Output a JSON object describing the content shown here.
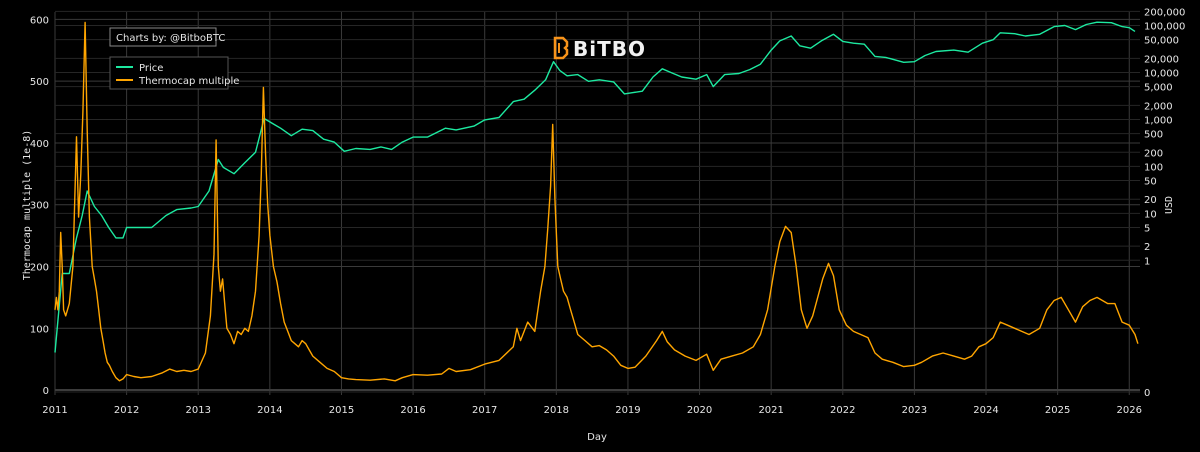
{
  "chart_data": {
    "type": "line",
    "credit": "Charts by: @BitboBTC",
    "brand": "BiTBO",
    "xlabel": "Day",
    "ylabel_left": "Thermocap multiple (1e-8)",
    "ylabel_right": "USD",
    "x_ticks": [
      "2011",
      "2012",
      "2013",
      "2014",
      "2015",
      "2016",
      "2017",
      "2018",
      "2019",
      "2020",
      "2021",
      "2022",
      "2023",
      "2024",
      "2025",
      "2026"
    ],
    "xlim": [
      2011.0,
      2026.15
    ],
    "ylim_left": [
      -8,
      612
    ],
    "y_ticks_left": [
      "0",
      "100",
      "200",
      "300",
      "400",
      "500",
      "600"
    ],
    "y_ticks_right": [
      "0",
      "1",
      "2",
      "5",
      "10",
      "20",
      "50",
      "100",
      "200",
      "500",
      "1,000",
      "2,000",
      "5,000",
      "10,000",
      "20,000",
      "50,000",
      "100,000",
      "200,000"
    ],
    "colors": {
      "price": "#1de9a0",
      "thermocap": "#ffa500",
      "grid": "#3a3a3a",
      "zero": "#777777"
    },
    "series": [
      {
        "name": "Price",
        "axis": "right",
        "unit": "USD",
        "points": [
          [
            2011.0,
            0.3
          ],
          [
            2011.1,
            0.9
          ],
          [
            2011.2,
            0.9
          ],
          [
            2011.3,
            3
          ],
          [
            2011.38,
            9
          ],
          [
            2011.45,
            30
          ],
          [
            2011.55,
            14
          ],
          [
            2011.65,
            9
          ],
          [
            2011.75,
            5
          ],
          [
            2011.85,
            3
          ],
          [
            2011.95,
            3
          ],
          [
            2012.0,
            5
          ],
          [
            2012.15,
            5
          ],
          [
            2012.35,
            5
          ],
          [
            2012.55,
            9
          ],
          [
            2012.7,
            12
          ],
          [
            2012.9,
            13
          ],
          [
            2013.0,
            14
          ],
          [
            2013.15,
            30
          ],
          [
            2013.28,
            140
          ],
          [
            2013.35,
            95
          ],
          [
            2013.5,
            70
          ],
          [
            2013.65,
            120
          ],
          [
            2013.8,
            200
          ],
          [
            2013.92,
            1050
          ],
          [
            2014.05,
            800
          ],
          [
            2014.15,
            650
          ],
          [
            2014.3,
            450
          ],
          [
            2014.45,
            620
          ],
          [
            2014.6,
            580
          ],
          [
            2014.75,
            380
          ],
          [
            2014.9,
            330
          ],
          [
            2015.04,
            210
          ],
          [
            2015.2,
            240
          ],
          [
            2015.4,
            230
          ],
          [
            2015.55,
            260
          ],
          [
            2015.7,
            230
          ],
          [
            2015.85,
            330
          ],
          [
            2016.0,
            420
          ],
          [
            2016.2,
            420
          ],
          [
            2016.45,
            650
          ],
          [
            2016.6,
            600
          ],
          [
            2016.85,
            720
          ],
          [
            2017.0,
            980
          ],
          [
            2017.2,
            1100
          ],
          [
            2017.4,
            2400
          ],
          [
            2017.55,
            2700
          ],
          [
            2017.7,
            4200
          ],
          [
            2017.85,
            7000
          ],
          [
            2017.96,
            17000
          ],
          [
            2018.05,
            11000
          ],
          [
            2018.15,
            8500
          ],
          [
            2018.3,
            9000
          ],
          [
            2018.45,
            6500
          ],
          [
            2018.6,
            7000
          ],
          [
            2018.8,
            6300
          ],
          [
            2018.95,
            3500
          ],
          [
            2019.05,
            3700
          ],
          [
            2019.2,
            4000
          ],
          [
            2019.35,
            8000
          ],
          [
            2019.48,
            12000
          ],
          [
            2019.6,
            10000
          ],
          [
            2019.75,
            8000
          ],
          [
            2019.95,
            7200
          ],
          [
            2020.1,
            9000
          ],
          [
            2020.19,
            5000
          ],
          [
            2020.35,
            9000
          ],
          [
            2020.55,
            9500
          ],
          [
            2020.7,
            11500
          ],
          [
            2020.85,
            15000
          ],
          [
            2021.0,
            30000
          ],
          [
            2021.12,
            47000
          ],
          [
            2021.28,
            60000
          ],
          [
            2021.4,
            37000
          ],
          [
            2021.55,
            33000
          ],
          [
            2021.7,
            47000
          ],
          [
            2021.87,
            65000
          ],
          [
            2022.0,
            46000
          ],
          [
            2022.15,
            42000
          ],
          [
            2022.3,
            40000
          ],
          [
            2022.45,
            22000
          ],
          [
            2022.6,
            21000
          ],
          [
            2022.85,
            16500
          ],
          [
            2023.0,
            17000
          ],
          [
            2023.15,
            23000
          ],
          [
            2023.3,
            28000
          ],
          [
            2023.55,
            30000
          ],
          [
            2023.75,
            27000
          ],
          [
            2023.95,
            42000
          ],
          [
            2024.1,
            50000
          ],
          [
            2024.2,
            70000
          ],
          [
            2024.4,
            67000
          ],
          [
            2024.55,
            60000
          ],
          [
            2024.75,
            65000
          ],
          [
            2024.95,
            95000
          ],
          [
            2025.1,
            100000
          ],
          [
            2025.25,
            82000
          ],
          [
            2025.4,
            105000
          ],
          [
            2025.55,
            118000
          ],
          [
            2025.75,
            115000
          ],
          [
            2025.9,
            95000
          ],
          [
            2026.0,
            90000
          ],
          [
            2026.08,
            75000
          ]
        ]
      },
      {
        "name": "Thermocap multiple",
        "axis": "left",
        "unit": "1e-8",
        "points": [
          [
            2011.0,
            130
          ],
          [
            2011.02,
            150
          ],
          [
            2011.04,
            130
          ],
          [
            2011.06,
            160
          ],
          [
            2011.08,
            255
          ],
          [
            2011.1,
            200
          ],
          [
            2011.12,
            130
          ],
          [
            2011.15,
            120
          ],
          [
            2011.2,
            140
          ],
          [
            2011.25,
            200
          ],
          [
            2011.3,
            410
          ],
          [
            2011.33,
            280
          ],
          [
            2011.36,
            350
          ],
          [
            2011.39,
            450
          ],
          [
            2011.42,
            595
          ],
          [
            2011.45,
            420
          ],
          [
            2011.48,
            280
          ],
          [
            2011.52,
            200
          ],
          [
            2011.55,
            180
          ],
          [
            2011.58,
            160
          ],
          [
            2011.61,
            130
          ],
          [
            2011.64,
            100
          ],
          [
            2011.67,
            80
          ],
          [
            2011.7,
            60
          ],
          [
            2011.73,
            45
          ],
          [
            2011.76,
            40
          ],
          [
            2011.8,
            30
          ],
          [
            2011.85,
            20
          ],
          [
            2011.9,
            15
          ],
          [
            2011.95,
            18
          ],
          [
            2012.0,
            25
          ],
          [
            2012.1,
            22
          ],
          [
            2012.2,
            20
          ],
          [
            2012.35,
            22
          ],
          [
            2012.5,
            28
          ],
          [
            2012.6,
            34
          ],
          [
            2012.7,
            30
          ],
          [
            2012.8,
            32
          ],
          [
            2012.9,
            30
          ],
          [
            2013.0,
            34
          ],
          [
            2013.1,
            60
          ],
          [
            2013.17,
            120
          ],
          [
            2013.22,
            220
          ],
          [
            2013.25,
            405
          ],
          [
            2013.28,
            200
          ],
          [
            2013.31,
            160
          ],
          [
            2013.34,
            180
          ],
          [
            2013.37,
            140
          ],
          [
            2013.4,
            100
          ],
          [
            2013.45,
            90
          ],
          [
            2013.5,
            75
          ],
          [
            2013.55,
            95
          ],
          [
            2013.6,
            90
          ],
          [
            2013.65,
            100
          ],
          [
            2013.7,
            95
          ],
          [
            2013.75,
            120
          ],
          [
            2013.8,
            160
          ],
          [
            2013.85,
            250
          ],
          [
            2013.88,
            350
          ],
          [
            2013.91,
            490
          ],
          [
            2013.94,
            380
          ],
          [
            2013.97,
            300
          ],
          [
            2014.0,
            250
          ],
          [
            2014.05,
            200
          ],
          [
            2014.1,
            175
          ],
          [
            2014.15,
            140
          ],
          [
            2014.2,
            110
          ],
          [
            2014.25,
            95
          ],
          [
            2014.3,
            80
          ],
          [
            2014.35,
            75
          ],
          [
            2014.4,
            70
          ],
          [
            2014.45,
            80
          ],
          [
            2014.5,
            75
          ],
          [
            2014.55,
            65
          ],
          [
            2014.6,
            55
          ],
          [
            2014.7,
            45
          ],
          [
            2014.8,
            35
          ],
          [
            2014.9,
            30
          ],
          [
            2015.0,
            20
          ],
          [
            2015.1,
            18
          ],
          [
            2015.2,
            17
          ],
          [
            2015.4,
            16
          ],
          [
            2015.6,
            18
          ],
          [
            2015.75,
            15
          ],
          [
            2015.85,
            20
          ],
          [
            2016.0,
            25
          ],
          [
            2016.2,
            24
          ],
          [
            2016.4,
            26
          ],
          [
            2016.5,
            35
          ],
          [
            2016.6,
            30
          ],
          [
            2016.8,
            33
          ],
          [
            2017.0,
            42
          ],
          [
            2017.2,
            48
          ],
          [
            2017.4,
            70
          ],
          [
            2017.45,
            100
          ],
          [
            2017.5,
            80
          ],
          [
            2017.6,
            110
          ],
          [
            2017.7,
            95
          ],
          [
            2017.78,
            160
          ],
          [
            2017.84,
            200
          ],
          [
            2017.88,
            260
          ],
          [
            2017.92,
            330
          ],
          [
            2017.95,
            430
          ],
          [
            2017.98,
            310
          ],
          [
            2018.02,
            200
          ],
          [
            2018.06,
            180
          ],
          [
            2018.1,
            160
          ],
          [
            2018.15,
            150
          ],
          [
            2018.2,
            130
          ],
          [
            2018.25,
            110
          ],
          [
            2018.3,
            90
          ],
          [
            2018.4,
            80
          ],
          [
            2018.5,
            70
          ],
          [
            2018.6,
            72
          ],
          [
            2018.7,
            65
          ],
          [
            2018.8,
            55
          ],
          [
            2018.9,
            40
          ],
          [
            2019.0,
            35
          ],
          [
            2019.1,
            37
          ],
          [
            2019.25,
            55
          ],
          [
            2019.4,
            80
          ],
          [
            2019.48,
            95
          ],
          [
            2019.55,
            78
          ],
          [
            2019.65,
            65
          ],
          [
            2019.8,
            55
          ],
          [
            2019.95,
            48
          ],
          [
            2020.1,
            58
          ],
          [
            2020.19,
            32
          ],
          [
            2020.3,
            50
          ],
          [
            2020.45,
            55
          ],
          [
            2020.6,
            60
          ],
          [
            2020.75,
            70
          ],
          [
            2020.85,
            90
          ],
          [
            2020.95,
            130
          ],
          [
            2021.05,
            200
          ],
          [
            2021.12,
            240
          ],
          [
            2021.2,
            265
          ],
          [
            2021.28,
            255
          ],
          [
            2021.35,
            200
          ],
          [
            2021.42,
            130
          ],
          [
            2021.5,
            100
          ],
          [
            2021.58,
            120
          ],
          [
            2021.65,
            150
          ],
          [
            2021.72,
            180
          ],
          [
            2021.8,
            205
          ],
          [
            2021.87,
            185
          ],
          [
            2021.95,
            130
          ],
          [
            2022.05,
            105
          ],
          [
            2022.15,
            95
          ],
          [
            2022.25,
            90
          ],
          [
            2022.35,
            85
          ],
          [
            2022.45,
            60
          ],
          [
            2022.55,
            50
          ],
          [
            2022.7,
            45
          ],
          [
            2022.85,
            38
          ],
          [
            2023.0,
            40
          ],
          [
            2023.1,
            45
          ],
          [
            2023.25,
            55
          ],
          [
            2023.4,
            60
          ],
          [
            2023.55,
            55
          ],
          [
            2023.7,
            50
          ],
          [
            2023.8,
            55
          ],
          [
            2023.9,
            70
          ],
          [
            2024.0,
            75
          ],
          [
            2024.1,
            85
          ],
          [
            2024.2,
            110
          ],
          [
            2024.3,
            105
          ],
          [
            2024.4,
            100
          ],
          [
            2024.5,
            95
          ],
          [
            2024.6,
            90
          ],
          [
            2024.75,
            100
          ],
          [
            2024.85,
            130
          ],
          [
            2024.95,
            145
          ],
          [
            2025.05,
            150
          ],
          [
            2025.15,
            130
          ],
          [
            2025.25,
            110
          ],
          [
            2025.35,
            135
          ],
          [
            2025.45,
            145
          ],
          [
            2025.55,
            150
          ],
          [
            2025.7,
            140
          ],
          [
            2025.8,
            140
          ],
          [
            2025.9,
            110
          ],
          [
            2026.0,
            105
          ],
          [
            2026.08,
            90
          ],
          [
            2026.12,
            75
          ]
        ]
      }
    ],
    "legend": {
      "placement": "top-left",
      "entries": [
        "Price",
        "Thermocap multiple"
      ]
    }
  }
}
